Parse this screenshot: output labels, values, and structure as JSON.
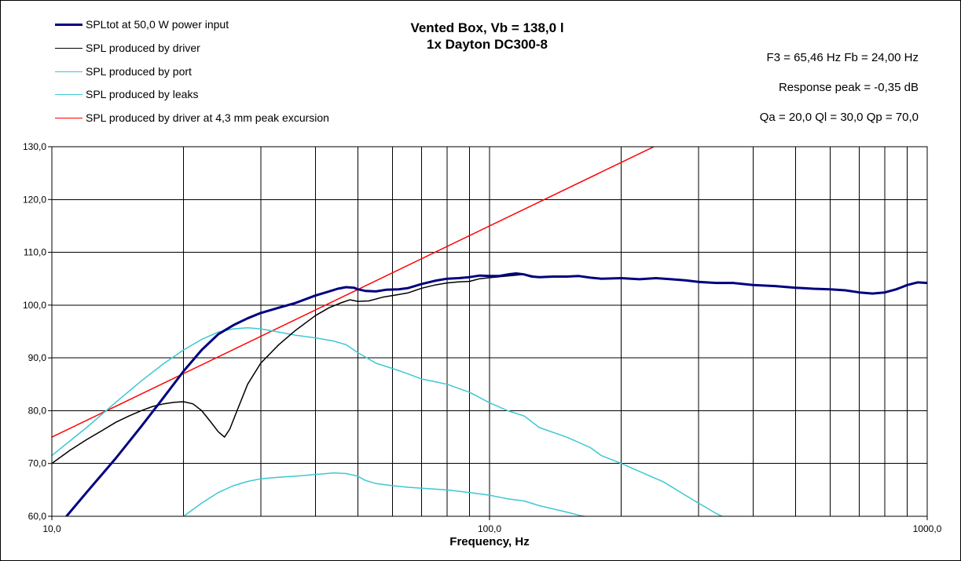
{
  "chart_data": {
    "type": "line",
    "title": [
      "Vented Box, Vb = 138,0 l",
      "1x Dayton DC300-8"
    ],
    "info": [
      "F3 = 65,46 Hz  Fb = 24,00 Hz",
      "Response  peak = -0,35 dB",
      "Qa = 20,0  Ql = 30,0  Qp = 70,0"
    ],
    "xlabel": "Frequency, Hz",
    "ylabel": "",
    "x_scale": "log",
    "xlim": [
      10,
      1000
    ],
    "ylim": [
      60,
      130
    ],
    "x_ticks": [
      10,
      100,
      1000
    ],
    "x_tick_labels": [
      "10,0",
      "100,0",
      "1000,0"
    ],
    "y_ticks": [
      60,
      70,
      80,
      90,
      100,
      110,
      120,
      130
    ],
    "y_tick_labels": [
      "60,0",
      "70,0",
      "80,0",
      "90,0",
      "100,0",
      "110,0",
      "120,0",
      "130,0"
    ],
    "grid": true,
    "legend_position": "top-left",
    "series": [
      {
        "name": "SPLtot at 50,0 W power input",
        "color": "#000080",
        "width": 3,
        "points": [
          [
            10.8,
            60
          ],
          [
            12,
            64.5
          ],
          [
            14,
            71
          ],
          [
            16,
            77
          ],
          [
            18,
            82.5
          ],
          [
            20,
            87.5
          ],
          [
            22,
            91.5
          ],
          [
            24,
            94.5
          ],
          [
            26,
            96.2
          ],
          [
            28,
            97.5
          ],
          [
            30,
            98.5
          ],
          [
            33,
            99.5
          ],
          [
            36,
            100.4
          ],
          [
            40,
            101.8
          ],
          [
            43,
            102.6
          ],
          [
            45,
            103.1
          ],
          [
            47,
            103.4
          ],
          [
            49,
            103.3
          ],
          [
            50,
            103
          ],
          [
            52,
            102.7
          ],
          [
            55,
            102.6
          ],
          [
            58,
            102.9
          ],
          [
            62,
            103
          ],
          [
            65,
            103.2
          ],
          [
            70,
            104
          ],
          [
            75,
            104.6
          ],
          [
            80,
            105
          ],
          [
            85,
            105.1
          ],
          [
            90,
            105.3
          ],
          [
            95,
            105.6
          ],
          [
            100,
            105.5
          ],
          [
            105,
            105.5
          ],
          [
            110,
            105.8
          ],
          [
            115,
            106
          ],
          [
            120,
            105.8
          ],
          [
            125,
            105.4
          ],
          [
            130,
            105.3
          ],
          [
            140,
            105.4
          ],
          [
            150,
            105.4
          ],
          [
            160,
            105.5
          ],
          [
            170,
            105.2
          ],
          [
            180,
            105
          ],
          [
            200,
            105.1
          ],
          [
            220,
            104.9
          ],
          [
            240,
            105.1
          ],
          [
            260,
            104.9
          ],
          [
            280,
            104.7
          ],
          [
            300,
            104.4
          ],
          [
            330,
            104.2
          ],
          [
            360,
            104.2
          ],
          [
            400,
            103.8
          ],
          [
            450,
            103.6
          ],
          [
            500,
            103.3
          ],
          [
            550,
            103.1
          ],
          [
            600,
            103
          ],
          [
            650,
            102.8
          ],
          [
            700,
            102.4
          ],
          [
            750,
            102.2
          ],
          [
            800,
            102.4
          ],
          [
            850,
            103
          ],
          [
            900,
            103.8
          ],
          [
            950,
            104.3
          ],
          [
            1000,
            104.2
          ]
        ]
      },
      {
        "name": "SPL produced by driver",
        "color": "#000000",
        "width": 1.5,
        "points": [
          [
            10,
            70
          ],
          [
            11,
            72.5
          ],
          [
            12,
            74.5
          ],
          [
            13,
            76.2
          ],
          [
            14,
            77.8
          ],
          [
            15,
            79
          ],
          [
            16,
            80
          ],
          [
            17,
            80.8
          ],
          [
            18,
            81.3
          ],
          [
            19,
            81.6
          ],
          [
            20,
            81.7
          ],
          [
            21,
            81.3
          ],
          [
            22,
            80
          ],
          [
            23,
            78
          ],
          [
            24,
            76
          ],
          [
            24.8,
            75
          ],
          [
            25.5,
            76.5
          ],
          [
            26.5,
            80
          ],
          [
            28,
            85
          ],
          [
            30,
            89
          ],
          [
            33,
            92.5
          ],
          [
            36,
            95.2
          ],
          [
            40,
            98
          ],
          [
            43,
            99.5
          ],
          [
            46,
            100.5
          ],
          [
            48,
            101
          ],
          [
            50,
            100.7
          ],
          [
            53,
            100.8
          ],
          [
            57,
            101.5
          ],
          [
            62,
            102
          ],
          [
            65,
            102.3
          ],
          [
            70,
            103.2
          ],
          [
            75,
            103.8
          ],
          [
            80,
            104.2
          ],
          [
            85,
            104.4
          ],
          [
            90,
            104.5
          ],
          [
            95,
            105
          ],
          [
            100,
            105.2
          ],
          [
            110,
            105.5
          ],
          [
            120,
            105.8
          ],
          [
            130,
            105.3
          ],
          [
            150,
            105.4
          ]
        ]
      },
      {
        "name": "SPL produced by port",
        "color": "#3CC8D2",
        "width": 1.5,
        "points": [
          [
            10,
            71.5
          ],
          [
            12,
            76.8
          ],
          [
            14,
            81.6
          ],
          [
            16,
            85.6
          ],
          [
            18,
            88.9
          ],
          [
            20,
            91.5
          ],
          [
            22,
            93.5
          ],
          [
            24,
            94.9
          ],
          [
            26,
            95.5
          ],
          [
            28,
            95.7
          ],
          [
            30,
            95.5
          ],
          [
            33,
            94.9
          ],
          [
            36,
            94.3
          ],
          [
            40,
            93.8
          ],
          [
            44,
            93.2
          ],
          [
            47,
            92.5
          ],
          [
            50,
            91
          ],
          [
            55,
            89
          ],
          [
            60,
            88
          ],
          [
            65,
            87
          ],
          [
            70,
            86
          ],
          [
            75,
            85.5
          ],
          [
            80,
            85
          ],
          [
            90,
            83.5
          ],
          [
            100,
            81.5
          ],
          [
            110,
            80
          ],
          [
            120,
            79
          ],
          [
            130,
            76.8
          ],
          [
            150,
            75
          ],
          [
            170,
            73
          ],
          [
            180,
            71.5
          ],
          [
            200,
            70
          ],
          [
            220,
            68.5
          ],
          [
            250,
            66.5
          ],
          [
            280,
            64
          ],
          [
            300,
            62.5
          ],
          [
            330,
            60.5
          ],
          [
            340,
            60
          ]
        ]
      },
      {
        "name": "SPL produced by leaks",
        "color": "#3CC8D2",
        "width": 1.5,
        "points": [
          [
            20,
            60
          ],
          [
            22,
            62.5
          ],
          [
            24,
            64.5
          ],
          [
            26,
            65.8
          ],
          [
            28,
            66.6
          ],
          [
            30,
            67.1
          ],
          [
            33,
            67.4
          ],
          [
            36,
            67.6
          ],
          [
            40,
            67.9
          ],
          [
            44,
            68.2
          ],
          [
            47,
            68.1
          ],
          [
            50,
            67.6
          ],
          [
            52,
            66.8
          ],
          [
            55,
            66.2
          ],
          [
            60,
            65.8
          ],
          [
            65,
            65.5
          ],
          [
            70,
            65.3
          ],
          [
            80,
            65
          ],
          [
            90,
            64.5
          ],
          [
            100,
            64
          ],
          [
            110,
            63.3
          ],
          [
            120,
            62.9
          ],
          [
            130,
            62
          ],
          [
            150,
            60.8
          ],
          [
            160,
            60.2
          ],
          [
            165,
            60
          ]
        ]
      },
      {
        "name": "SPL produced by driver at 4,3 mm peak excursion",
        "color": "#FF0000",
        "width": 1.5,
        "points": [
          [
            10,
            75
          ],
          [
            250,
            130.9
          ]
        ]
      }
    ]
  }
}
